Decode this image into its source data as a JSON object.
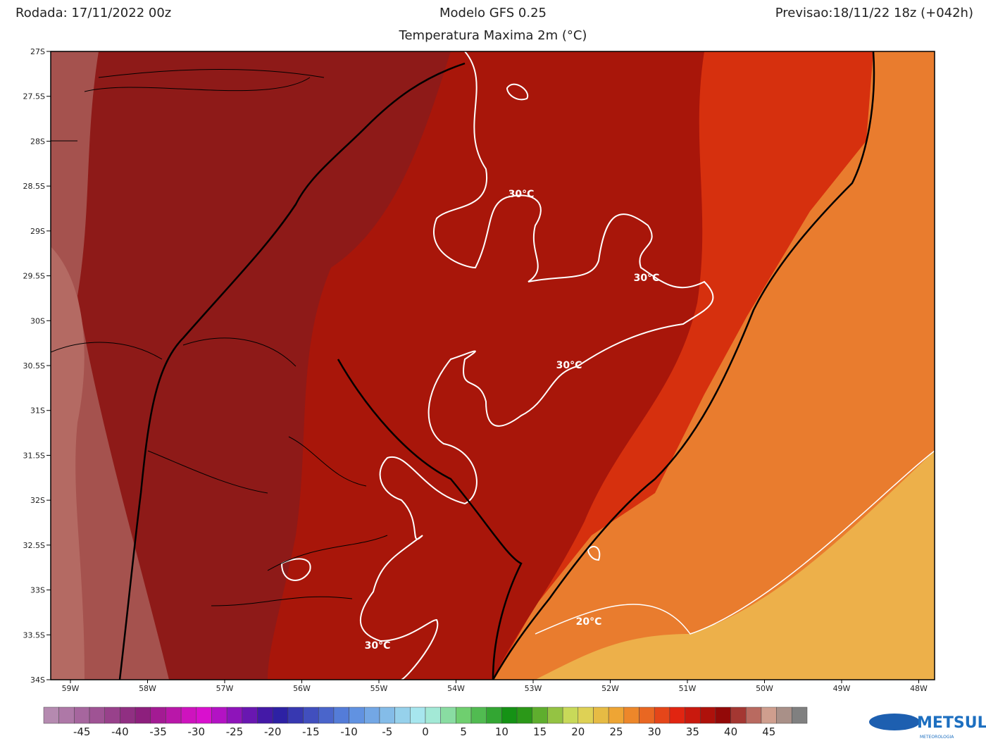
{
  "header": {
    "left": "Rodada: 17/11/2022 00z",
    "center": "Modelo GFS 0.25",
    "right": "Previsao:18/11/22 18z (+042h)",
    "subtitle": "Temperatura Maxima 2m (°C)"
  },
  "map": {
    "lat_labels": [
      "27S",
      "27.5S",
      "28S",
      "28.5S",
      "29S",
      "29.5S",
      "30S",
      "30.5S",
      "31S",
      "31.5S",
      "32S",
      "32.5S",
      "33S",
      "33.5S",
      "34S"
    ],
    "lon_labels": [
      "59W",
      "58W",
      "57W",
      "56W",
      "55W",
      "54W",
      "53W",
      "52W",
      "51W",
      "50W",
      "49W",
      "48W"
    ],
    "contour_labels": [
      "30°C",
      "30°C",
      "30°C",
      "30°C",
      "20°C"
    ]
  },
  "colorbar": {
    "labels": [
      -45,
      -40,
      -35,
      -30,
      -25,
      -20,
      -15,
      -10,
      -5,
      0,
      5,
      10,
      15,
      20,
      25,
      30,
      35,
      40,
      45
    ]
  },
  "logo": {
    "name": "METSUL",
    "tagline": "METEOROLOGIA"
  }
}
